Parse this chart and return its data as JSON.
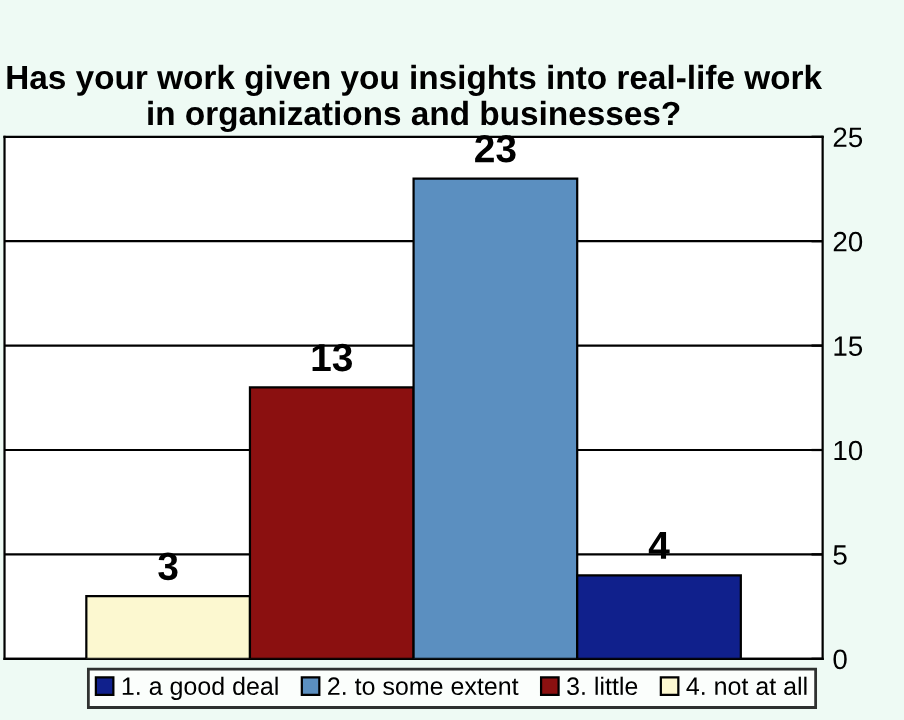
{
  "chart_data": {
    "type": "bar",
    "title": "Has your work given you insights into real-life work in organizations and businesses?",
    "categories": [
      null
    ],
    "series": [
      {
        "name": "4. not at all",
        "color": "#fcf8d0",
        "values": [
          3
        ]
      },
      {
        "name": "3. little",
        "color": "#8b1010",
        "values": [
          13
        ]
      },
      {
        "name": "2. to some extent",
        "color": "#5b8fc0",
        "values": [
          23
        ]
      },
      {
        "name": "1. a good deal",
        "color": "#10208c",
        "values": [
          4
        ]
      }
    ],
    "ylim": [
      0,
      25
    ],
    "yticks": [
      0,
      5,
      10,
      15,
      20,
      25
    ],
    "grid": "y",
    "legend": "bottom",
    "data_labels": true
  }
}
